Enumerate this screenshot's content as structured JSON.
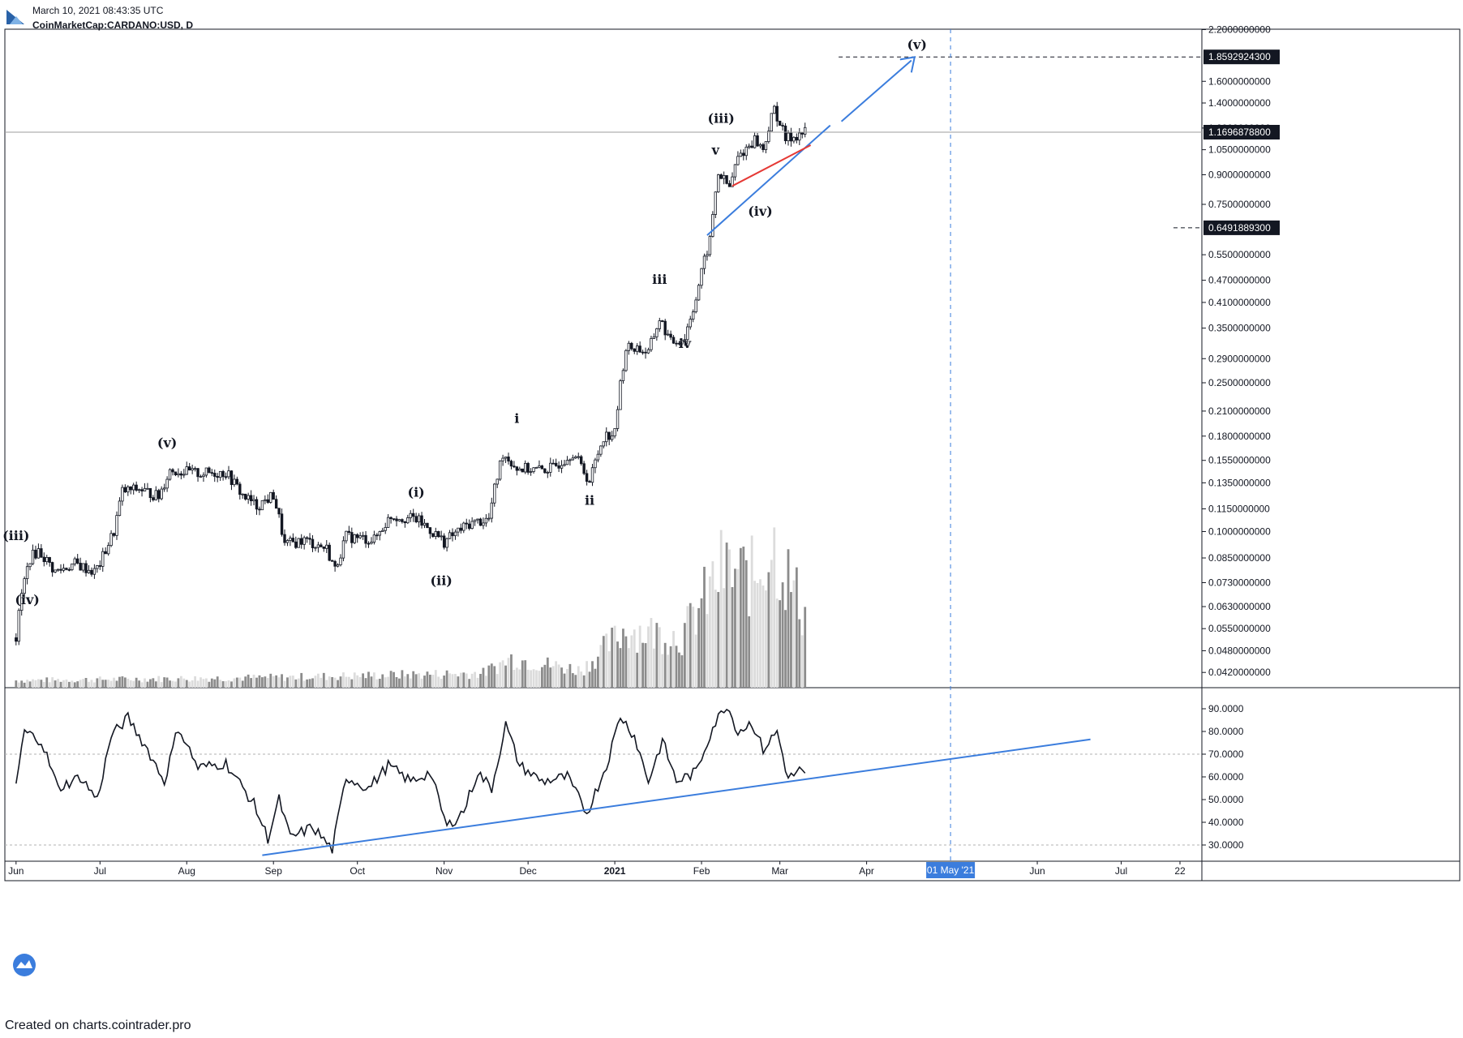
{
  "header": {
    "datetime": "March 10, 2021 08:43:35 UTC",
    "symbol": "CoinMarketCap:CARDANO:USD, D"
  },
  "footer": {
    "text": "Created on charts.cointrader.pro"
  },
  "colors": {
    "up_candle": "#ffffff",
    "down_candle": "#131722",
    "trendline": "#3b7ddd",
    "red_line": "#e53935",
    "volume_dark": "#8c8c8c",
    "volume_light": "#dcdcdc",
    "price_tag_bg": "#131722",
    "date_tag_bg": "#3b7ddd"
  },
  "chart_data": [
    {
      "type": "candlestick",
      "panel": "price",
      "scale": "log",
      "ylim": [
        0.042,
        2.2
      ],
      "x_ticks": [
        "Jun",
        "Jul",
        "Aug",
        "Sep",
        "Oct",
        "Nov",
        "Dec",
        "2021",
        "Feb",
        "Mar",
        "Apr",
        "01 May '21",
        "Jun",
        "Jul",
        "22"
      ],
      "y_ticks": [
        "2.2000000000",
        "1.6000000000",
        "1.4000000000",
        "1.2000000000",
        "1.0500000000",
        "0.9000000000",
        "0.7500000000",
        "0.5500000000",
        "0.4700000000",
        "0.4100000000",
        "0.3500000000",
        "0.2900000000",
        "0.2500000000",
        "0.2100000000",
        "0.1800000000",
        "0.1550000000",
        "0.1350000000",
        "0.1150000000",
        "0.1000000000",
        "0.0850000000",
        "0.0730000000",
        "0.0630000000",
        "0.0550000000",
        "0.0480000000",
        "0.0420000000"
      ],
      "price_tags": [
        {
          "label": "1.8592924300",
          "value": 1.85929243
        },
        {
          "label": "1.1696878800",
          "value": 1.16968788
        },
        {
          "label": "0.6491889300",
          "value": 0.64918893
        }
      ],
      "date_tag": "01 May '21",
      "wave_labels": [
        {
          "text": "(iii)",
          "date": "2020-06-01",
          "value": 0.095
        },
        {
          "text": "(iv)",
          "date": "2020-06-05",
          "value": 0.064
        },
        {
          "text": "(v)",
          "date": "2020-07-25",
          "value": 0.168
        },
        {
          "text": "(i)",
          "date": "2020-10-22",
          "value": 0.124
        },
        {
          "text": "(ii)",
          "date": "2020-10-31",
          "value": 0.072
        },
        {
          "text": "i",
          "date": "2020-11-27",
          "value": 0.195
        },
        {
          "text": "ii",
          "date": "2020-12-23",
          "value": 0.118
        },
        {
          "text": "iii",
          "date": "2021-01-17",
          "value": 0.46
        },
        {
          "text": "iv",
          "date": "2021-01-26",
          "value": 0.31
        },
        {
          "text": "v",
          "date": "2021-02-06",
          "value": 1.02
        },
        {
          "text": "(iii)",
          "date": "2021-02-08",
          "value": 1.24
        },
        {
          "text": "(iv)",
          "date": "2021-02-22",
          "value": 0.7
        },
        {
          "text": "(v)",
          "date": "2021-04-19",
          "value": 1.95
        }
      ],
      "anchors": [
        {
          "date": "2020-06-01",
          "close": 0.052
        },
        {
          "date": "2020-06-03",
          "close": 0.068
        },
        {
          "date": "2020-06-06",
          "close": 0.085
        },
        {
          "date": "2020-06-09",
          "close": 0.089
        },
        {
          "date": "2020-06-15",
          "close": 0.078
        },
        {
          "date": "2020-06-22",
          "close": 0.082
        },
        {
          "date": "2020-06-29",
          "close": 0.078
        },
        {
          "date": "2020-07-01",
          "close": 0.082
        },
        {
          "date": "2020-07-06",
          "close": 0.1
        },
        {
          "date": "2020-07-09",
          "close": 0.128
        },
        {
          "date": "2020-07-15",
          "close": 0.13
        },
        {
          "date": "2020-07-22",
          "close": 0.124
        },
        {
          "date": "2020-07-26",
          "close": 0.146
        },
        {
          "date": "2020-08-05",
          "close": 0.143
        },
        {
          "date": "2020-08-15",
          "close": 0.144
        },
        {
          "date": "2020-08-21",
          "close": 0.125
        },
        {
          "date": "2020-08-26",
          "close": 0.117
        },
        {
          "date": "2020-09-01",
          "close": 0.125
        },
        {
          "date": "2020-09-05",
          "close": 0.092
        },
        {
          "date": "2020-09-12",
          "close": 0.095
        },
        {
          "date": "2020-09-20",
          "close": 0.09
        },
        {
          "date": "2020-09-23",
          "close": 0.079
        },
        {
          "date": "2020-09-27",
          "close": 0.097
        },
        {
          "date": "2020-10-07",
          "close": 0.095
        },
        {
          "date": "2020-10-13",
          "close": 0.11
        },
        {
          "date": "2020-10-22",
          "close": 0.108
        },
        {
          "date": "2020-11-01",
          "close": 0.094
        },
        {
          "date": "2020-11-10",
          "close": 0.105
        },
        {
          "date": "2020-11-17",
          "close": 0.108
        },
        {
          "date": "2020-11-22",
          "close": 0.162
        },
        {
          "date": "2020-11-27",
          "close": 0.148
        },
        {
          "date": "2020-12-05",
          "close": 0.146
        },
        {
          "date": "2020-12-10",
          "close": 0.148
        },
        {
          "date": "2020-12-17",
          "close": 0.163
        },
        {
          "date": "2020-12-23",
          "close": 0.136
        },
        {
          "date": "2020-12-28",
          "close": 0.18
        },
        {
          "date": "2021-01-01",
          "close": 0.183
        },
        {
          "date": "2021-01-05",
          "close": 0.31
        },
        {
          "date": "2021-01-09",
          "close": 0.31
        },
        {
          "date": "2021-01-13",
          "close": 0.3
        },
        {
          "date": "2021-01-17",
          "close": 0.37
        },
        {
          "date": "2021-01-21",
          "close": 0.32
        },
        {
          "date": "2021-01-26",
          "close": 0.33
        },
        {
          "date": "2021-01-30",
          "close": 0.42
        },
        {
          "date": "2021-02-04",
          "close": 0.6
        },
        {
          "date": "2021-02-07",
          "close": 0.91
        },
        {
          "date": "2021-02-11",
          "close": 0.83
        },
        {
          "date": "2021-02-14",
          "close": 1.0
        },
        {
          "date": "2021-02-20",
          "close": 1.12
        },
        {
          "date": "2021-02-23",
          "close": 1.05
        },
        {
          "date": "2021-02-27",
          "close": 1.35
        },
        {
          "date": "2021-03-03",
          "close": 1.12
        },
        {
          "date": "2021-03-10",
          "close": 1.17
        }
      ]
    },
    {
      "type": "line",
      "panel": "oscillator",
      "ylim": [
        25,
        95
      ],
      "y_ticks": [
        "90.0000",
        "80.0000",
        "70.0000",
        "60.0000",
        "50.0000",
        "40.0000",
        "30.0000"
      ],
      "levels": [
        70,
        30
      ],
      "anchors": [
        {
          "date": "2020-06-01",
          "value": 57
        },
        {
          "date": "2020-06-04",
          "value": 80
        },
        {
          "date": "2020-06-10",
          "value": 76
        },
        {
          "date": "2020-06-16",
          "value": 55
        },
        {
          "date": "2020-06-24",
          "value": 60
        },
        {
          "date": "2020-06-30",
          "value": 50
        },
        {
          "date": "2020-07-05",
          "value": 78
        },
        {
          "date": "2020-07-11",
          "value": 86
        },
        {
          "date": "2020-07-18",
          "value": 72
        },
        {
          "date": "2020-07-24",
          "value": 58
        },
        {
          "date": "2020-07-29",
          "value": 82
        },
        {
          "date": "2020-08-05",
          "value": 64
        },
        {
          "date": "2020-08-15",
          "value": 66
        },
        {
          "date": "2020-08-25",
          "value": 48
        },
        {
          "date": "2020-08-30",
          "value": 33
        },
        {
          "date": "2020-09-03",
          "value": 50
        },
        {
          "date": "2020-09-07",
          "value": 33
        },
        {
          "date": "2020-09-15",
          "value": 38
        },
        {
          "date": "2020-09-22",
          "value": 28
        },
        {
          "date": "2020-09-27",
          "value": 60
        },
        {
          "date": "2020-10-05",
          "value": 55
        },
        {
          "date": "2020-10-12",
          "value": 65
        },
        {
          "date": "2020-10-20",
          "value": 58
        },
        {
          "date": "2020-10-27",
          "value": 62
        },
        {
          "date": "2020-11-02",
          "value": 38
        },
        {
          "date": "2020-11-08",
          "value": 45
        },
        {
          "date": "2020-11-13",
          "value": 62
        },
        {
          "date": "2020-11-18",
          "value": 55
        },
        {
          "date": "2020-11-23",
          "value": 83
        },
        {
          "date": "2020-11-28",
          "value": 65
        },
        {
          "date": "2020-12-06",
          "value": 58
        },
        {
          "date": "2020-12-15",
          "value": 60
        },
        {
          "date": "2020-12-22",
          "value": 44
        },
        {
          "date": "2020-12-29",
          "value": 65
        },
        {
          "date": "2021-01-03",
          "value": 87
        },
        {
          "date": "2021-01-08",
          "value": 78
        },
        {
          "date": "2021-01-13",
          "value": 58
        },
        {
          "date": "2021-01-18",
          "value": 76
        },
        {
          "date": "2021-01-23",
          "value": 58
        },
        {
          "date": "2021-01-30",
          "value": 62
        },
        {
          "date": "2021-02-05",
          "value": 82
        },
        {
          "date": "2021-02-10",
          "value": 92
        },
        {
          "date": "2021-02-14",
          "value": 80
        },
        {
          "date": "2021-02-19",
          "value": 84
        },
        {
          "date": "2021-02-23",
          "value": 72
        },
        {
          "date": "2021-02-28",
          "value": 80
        },
        {
          "date": "2021-03-04",
          "value": 59
        },
        {
          "date": "2021-03-08",
          "value": 63
        },
        {
          "date": "2021-03-10",
          "value": 60
        }
      ]
    },
    {
      "type": "bar",
      "panel": "volume",
      "note": "volume histogram behind candles, rising into 2021",
      "anchors": [
        {
          "date": "2020-06-01",
          "value": 0.05
        },
        {
          "date": "2020-09-01",
          "value": 0.07
        },
        {
          "date": "2020-11-15",
          "value": 0.1
        },
        {
          "date": "2020-11-25",
          "value": 0.2
        },
        {
          "date": "2020-12-20",
          "value": 0.12
        },
        {
          "date": "2021-01-05",
          "value": 0.4
        },
        {
          "date": "2021-01-25",
          "value": 0.35
        },
        {
          "date": "2021-02-08",
          "value": 0.8
        },
        {
          "date": "2021-02-20",
          "value": 0.75
        },
        {
          "date": "2021-02-26",
          "value": 1.0
        },
        {
          "date": "2021-03-10",
          "value": 0.5
        }
      ]
    }
  ]
}
